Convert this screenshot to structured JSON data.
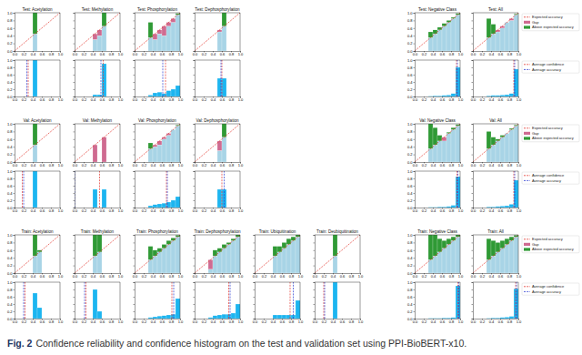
{
  "chart_data": {
    "type": "reliability_grid",
    "xlim": [
      0,
      1
    ],
    "ylim": [
      0,
      1
    ],
    "xticks": [
      {
        "value": 0,
        "label": "0.0"
      },
      {
        "value": 0.2,
        "label": "0.2"
      },
      {
        "value": 0.4,
        "label": "0.4"
      },
      {
        "value": 0.6,
        "label": "0.6"
      },
      {
        "value": 0.8,
        "label": "0.8"
      },
      {
        "value": 1,
        "label": "1.0"
      }
    ],
    "yticks": [
      {
        "value": 0,
        "label": "0.0"
      },
      {
        "value": 0.2,
        "label": "0.2"
      },
      {
        "value": 0.4,
        "label": "0.4"
      },
      {
        "value": 0.6,
        "label": "0.6"
      },
      {
        "value": 0.8,
        "label": "0.8"
      },
      {
        "value": 1,
        "label": "1.0"
      }
    ],
    "bins": [
      0,
      0.1,
      0.2,
      0.3,
      0.4,
      0.5,
      0.6,
      0.7,
      0.8,
      0.9,
      1
    ],
    "reliability_series": [
      {
        "name": "Expected accuracy",
        "color": "#e2352d",
        "line_style": "dashed"
      },
      {
        "name": "Gap",
        "color": "#cf6b91"
      },
      {
        "name": "Above expected accuracy",
        "color": "#2f9a35"
      }
    ],
    "histogram_series": [
      {
        "name": "Average confidence",
        "color": "#e2352d",
        "line_style": "dashed"
      },
      {
        "name": "Average accuracy",
        "color": "#2a3ad0",
        "line_style": "dashed"
      }
    ],
    "rows": [
      [
        {
          "title": "Test: Acetylation",
          "accuracy": [
            null,
            null,
            null,
            null,
            1.0,
            null,
            null,
            null,
            null,
            null
          ],
          "proportion": [
            0,
            0,
            0,
            0,
            1.0,
            0,
            0,
            0,
            0,
            0
          ],
          "avg_confidence": 0.3,
          "avg_accuracy": 0.27
        },
        {
          "title": "Test: Methylation",
          "accuracy": [
            null,
            null,
            null,
            null,
            0.3,
            0.4,
            1.0,
            null,
            null,
            null
          ],
          "proportion": [
            0,
            0,
            0,
            0,
            0.05,
            0.05,
            0.9,
            0,
            0,
            0
          ],
          "avg_confidence": 0.63,
          "avg_accuracy": 0.58
        },
        {
          "title": "Test: Phosphorylation",
          "accuracy": [
            null,
            null,
            null,
            0.75,
            0.3,
            0.45,
            0.4,
            0.65,
            0.75,
            0.98
          ],
          "proportion": [
            0,
            0,
            0,
            0.04,
            0.1,
            0.12,
            0.08,
            0.16,
            0.2,
            0.3
          ],
          "avg_confidence": 0.68,
          "avg_accuracy": 0.62
        },
        {
          "title": "Test: Dephosphorylation",
          "accuracy": [
            null,
            null,
            null,
            null,
            null,
            0.5,
            1.0,
            null,
            null,
            null
          ],
          "proportion": [
            0,
            0,
            0,
            0,
            0,
            0.5,
            0.5,
            0,
            0,
            0
          ],
          "avg_confidence": 0.6,
          "avg_accuracy": 0.58
        },
        {
          "title": "Test: Negative Class",
          "accuracy": [
            null,
            null,
            null,
            0.5,
            0.55,
            0.62,
            0.72,
            0.8,
            0.88,
            0.98
          ],
          "proportion": [
            0,
            0,
            0,
            0.01,
            0.02,
            0.02,
            0.03,
            0.04,
            0.08,
            0.8
          ],
          "avg_confidence": 0.92,
          "avg_accuracy": 0.94
        },
        {
          "title": "Test: All",
          "accuracy": [
            null,
            null,
            null,
            0.85,
            0.7,
            0.5,
            0.6,
            0.75,
            0.8,
            0.97
          ],
          "proportion": [
            0,
            0,
            0,
            0.02,
            0.03,
            0.03,
            0.04,
            0.05,
            0.08,
            0.75
          ],
          "avg_confidence": 0.9,
          "avg_accuracy": 0.92
        }
      ],
      [
        {
          "title": "Val: Acetylation",
          "accuracy": [
            null,
            null,
            null,
            null,
            1.0,
            null,
            null,
            null,
            null,
            null
          ],
          "proportion": [
            0,
            0,
            0,
            0,
            1.0,
            0,
            0,
            0,
            0,
            0
          ],
          "avg_confidence": 0.17,
          "avg_accuracy": 0.2
        },
        {
          "title": "Val: Methylation",
          "accuracy": [
            null,
            null,
            null,
            null,
            0.0,
            null,
            0.0,
            null,
            null,
            null
          ],
          "proportion": [
            0,
            0,
            0,
            0,
            0.5,
            0,
            0.5,
            0,
            0,
            0
          ],
          "avg_confidence": 0.55,
          "avg_accuracy": 0.0
        },
        {
          "title": "Val: Phosphorylation",
          "accuracy": [
            null,
            null,
            null,
            0.5,
            0.4,
            0.45,
            0.6,
            0.7,
            0.85,
            0.97
          ],
          "proportion": [
            0,
            0,
            0,
            0.05,
            0.08,
            0.1,
            0.12,
            0.15,
            0.2,
            0.3
          ],
          "avg_confidence": 0.7,
          "avg_accuracy": 0.72
        },
        {
          "title": "Val: Dephosphorylation",
          "accuracy": [
            null,
            null,
            null,
            null,
            null,
            0.3,
            1.0,
            null,
            null,
            null
          ],
          "proportion": [
            0,
            0,
            0,
            0,
            0,
            0.5,
            0.5,
            0,
            0,
            0
          ],
          "avg_confidence": 0.6,
          "avg_accuracy": 0.65
        },
        {
          "title": "Val: Negative Class",
          "accuracy": [
            null,
            null,
            null,
            1.0,
            0.9,
            0.7,
            0.55,
            0.78,
            0.9,
            0.98
          ],
          "proportion": [
            0,
            0,
            0,
            0.01,
            0.01,
            0.02,
            0.02,
            0.03,
            0.06,
            0.85
          ],
          "avg_confidence": 0.93,
          "avg_accuracy": 0.95
        },
        {
          "title": "Val: All",
          "accuracy": [
            null,
            null,
            null,
            0.8,
            0.65,
            0.6,
            0.7,
            0.75,
            0.88,
            0.97
          ],
          "proportion": [
            0,
            0,
            0,
            0.02,
            0.02,
            0.03,
            0.04,
            0.05,
            0.09,
            0.75
          ],
          "avg_confidence": 0.9,
          "avg_accuracy": 0.92
        }
      ],
      [
        {
          "title": "Train: Acetylation",
          "accuracy": [
            null,
            null,
            null,
            null,
            1.0,
            0.6,
            null,
            null,
            null,
            null
          ],
          "proportion": [
            0,
            0,
            0,
            0,
            0.7,
            0.3,
            0,
            0,
            0,
            0
          ],
          "avg_confidence": 0.23,
          "avg_accuracy": 0.2
        },
        {
          "title": "Train: Methylation",
          "accuracy": [
            null,
            null,
            null,
            null,
            1.0,
            1.0,
            null,
            null,
            null,
            null
          ],
          "proportion": [
            0,
            0,
            0,
            0,
            0.8,
            0.2,
            0,
            0,
            0,
            0
          ],
          "avg_confidence": 0.25,
          "avg_accuracy": 0.22
        },
        {
          "title": "Train: Phosphorylation",
          "accuracy": [
            null,
            null,
            null,
            0.7,
            0.6,
            0.65,
            0.75,
            0.85,
            0.92,
            0.99
          ],
          "proportion": [
            0,
            0,
            0,
            0.03,
            0.05,
            0.07,
            0.08,
            0.1,
            0.12,
            0.55
          ],
          "avg_confidence": 0.82,
          "avg_accuracy": 0.86
        },
        {
          "title": "Train: Dephosphorylation",
          "accuracy": [
            null,
            null,
            null,
            0.1,
            0.6,
            0.65,
            0.75,
            0.8,
            0.9,
            1.0
          ],
          "proportion": [
            0,
            0,
            0,
            0.03,
            0.08,
            0.1,
            0.12,
            0.12,
            0.15,
            0.4
          ],
          "avg_confidence": 0.75,
          "avg_accuracy": 0.78
        },
        {
          "title": "Train: Ubiquitination",
          "accuracy": [
            null,
            null,
            null,
            null,
            0.7,
            0.7,
            0.8,
            0.9,
            0.95,
            1.0
          ],
          "proportion": [
            0,
            0,
            0,
            0,
            0.1,
            0.1,
            0.1,
            0.1,
            0.1,
            0.5
          ],
          "avg_confidence": 0.78,
          "avg_accuracy": 0.85
        },
        {
          "title": "Train: Deubiquitination",
          "accuracy": [
            null,
            null,
            null,
            null,
            1.0,
            null,
            null,
            null,
            null,
            null
          ],
          "proportion": [
            0,
            0,
            0,
            0,
            1.0,
            0,
            0,
            0,
            0,
            0
          ],
          "avg_confidence": 0.2,
          "avg_accuracy": 0.22
        },
        {
          "title": "Train: Negative Class",
          "accuracy": [
            null,
            null,
            null,
            1.0,
            1.0,
            0.9,
            0.85,
            0.9,
            0.95,
            1.0
          ],
          "proportion": [
            0,
            0,
            0,
            0.01,
            0.01,
            0.01,
            0.02,
            0.02,
            0.03,
            0.9
          ],
          "avg_confidence": 0.95,
          "avg_accuracy": 0.97
        },
        {
          "title": "Train: All",
          "accuracy": [
            null,
            null,
            null,
            0.9,
            0.85,
            0.8,
            0.85,
            0.9,
            0.95,
            0.99
          ],
          "proportion": [
            0,
            0,
            0,
            0.01,
            0.02,
            0.02,
            0.03,
            0.04,
            0.06,
            0.82
          ],
          "avg_confidence": 0.94,
          "avg_accuracy": 0.96
        }
      ]
    ],
    "caption": {
      "label": "Fig. 2",
      "text": "Confidence reliability and confidence histogram on the test and validation set using PPI-BioBERT-x10."
    }
  }
}
